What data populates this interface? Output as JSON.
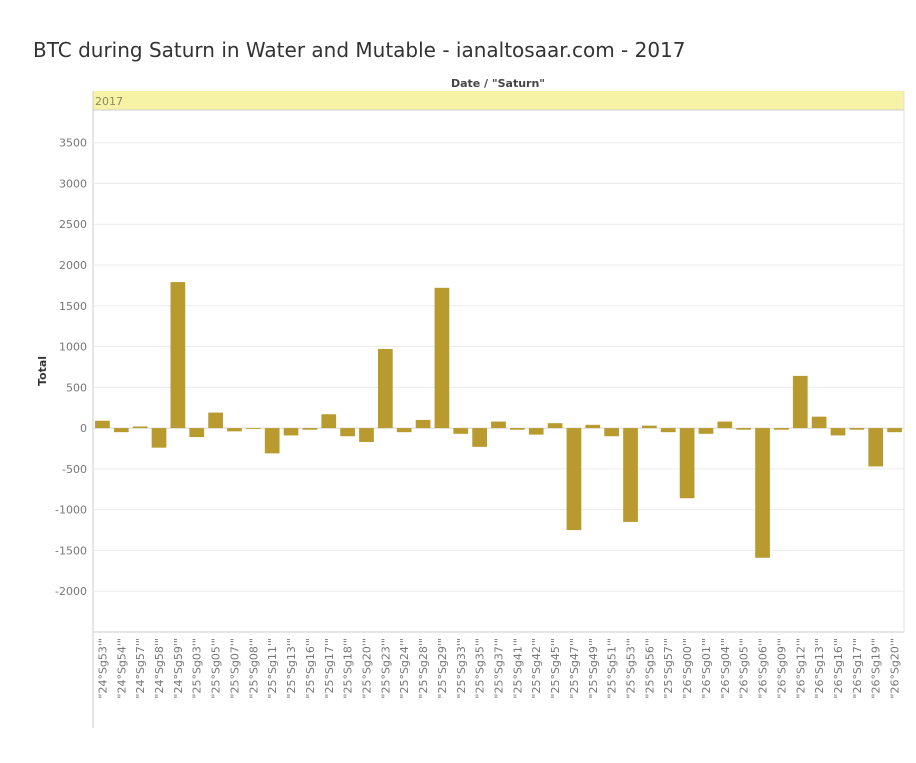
{
  "chart_data": {
    "type": "bar",
    "title": "BTC during Saturn in Water and Mutable - ianaltosaar.com - 2017",
    "column_header": "Date / \"Saturn\"",
    "panel_label": "2017",
    "ylabel": "Total",
    "xlabel": "",
    "ylim": [
      -2500,
      3900
    ],
    "yticks": [
      3500,
      3000,
      2500,
      2000,
      1500,
      1000,
      500,
      0,
      -500,
      -1000,
      -1500,
      -2000
    ],
    "grid": true,
    "categories": [
      "\"24°Sg53'\"",
      "\"24°Sg54'\"",
      "\"24°Sg57'\"",
      "\"24°Sg58'\"",
      "\"24°Sg59'\"",
      "\"25°Sg03'\"",
      "\"25°Sg05'\"",
      "\"25°Sg07'\"",
      "\"25°Sg08'\"",
      "\"25°Sg11'\"",
      "\"25°Sg13'\"",
      "\"25°Sg16'\"",
      "\"25°Sg17'\"",
      "\"25°Sg18'\"",
      "\"25°Sg20'\"",
      "\"25°Sg23'\"",
      "\"25°Sg24'\"",
      "\"25°Sg28'\"",
      "\"25°Sg29'\"",
      "\"25°Sg33'\"",
      "\"25°Sg35'\"",
      "\"25°Sg37'\"",
      "\"25°Sg41'\"",
      "\"25°Sg42'\"",
      "\"25°Sg45'\"",
      "\"25°Sg47'\"",
      "\"25°Sg49'\"",
      "\"25°Sg51'\"",
      "\"25°Sg53'\"",
      "\"25°Sg56'\"",
      "\"25°Sg57'\"",
      "\"26°Sg00'\"",
      "\"26°Sg01'\"",
      "\"26°Sg04'\"",
      "\"26°Sg05'\"",
      "\"26°Sg06'\"",
      "\"26°Sg09'\"",
      "\"26°Sg12'\"",
      "\"26°Sg13'\"",
      "\"26°Sg16'\"",
      "\"26°Sg17'\"",
      "\"26°Sg19'\"",
      "\"26°Sg20'\""
    ],
    "values": [
      90,
      -50,
      20,
      -240,
      1790,
      -110,
      190,
      -40,
      -10,
      -310,
      -90,
      -20,
      170,
      -100,
      -170,
      970,
      -50,
      100,
      1720,
      -70,
      -230,
      80,
      -20,
      -80,
      60,
      -1250,
      40,
      -100,
      -1150,
      30,
      -50,
      -860,
      -70,
      80,
      -20,
      -1590,
      -20,
      640,
      140,
      -90,
      -20,
      -470,
      -50
    ],
    "colors": {
      "bar": "#b89a2e",
      "header_band": "#f7f3a6",
      "grid": "#ececec",
      "axis_text": "#777777",
      "title_text": "#333333"
    }
  }
}
